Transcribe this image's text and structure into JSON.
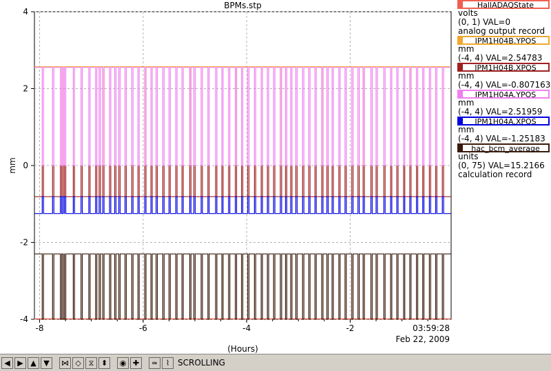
{
  "chart_data": {
    "type": "line",
    "title": "BPMs.stp",
    "xlabel": "(Hours)",
    "ylabel": "mm",
    "xlim": [
      -8.1,
      -0.05
    ],
    "ylim": [
      -4,
      4
    ],
    "xticks": [
      -8,
      -6,
      -4,
      -2
    ],
    "yticks": [
      4,
      2,
      0,
      -2,
      -4
    ],
    "xtick_labels": [
      "-8",
      "-6",
      "-4",
      "-2"
    ],
    "ytick_labels": [
      "4",
      "2",
      "0",
      "-2",
      "-4"
    ],
    "grid": true,
    "legend": "right",
    "time_label": "03:59:28",
    "date_label": "Feb 22, 2009",
    "series": [
      {
        "name": "HallADAQState",
        "color": "#f06050",
        "baseline": -3.99,
        "high": -3.99
      },
      {
        "name": "IPM1H04B.YPOS",
        "color": "#f0a830",
        "baseline": 2.57,
        "low": 0.0
      },
      {
        "name": "IPM1H04B.XPOS",
        "color": "#a02020",
        "baseline": -0.81,
        "low": 0.0
      },
      {
        "name": "IPM1H04A.YPOS",
        "color": "#f080f0",
        "baseline": 2.55,
        "low": 0.0
      },
      {
        "name": "IPM1H04A.XPOS",
        "color": "#0000e0",
        "baseline": -1.25,
        "low": -0.81
      },
      {
        "name": "hac_bcm_average",
        "color": "#3a1a0a",
        "baseline": -2.3,
        "low": -4.0
      }
    ],
    "dropouts_hours": [
      -7.95,
      -7.75,
      -7.6,
      -7.55,
      -7.52,
      -7.35,
      -7.2,
      -7.05,
      -6.92,
      -6.85,
      -6.78,
      -6.65,
      -6.55,
      -6.47,
      -6.35,
      -6.22,
      -6.1,
      -5.97,
      -5.85,
      -5.75,
      -5.62,
      -5.5,
      -5.37,
      -5.25,
      -5.1,
      -5.02,
      -4.88,
      -4.75,
      -4.6,
      -4.48,
      -4.35,
      -4.22,
      -4.1,
      -3.98,
      -3.85,
      -3.72,
      -3.6,
      -3.48,
      -3.35,
      -3.25,
      -3.15,
      -3.05,
      -2.92,
      -2.8,
      -2.68,
      -2.55,
      -2.45,
      -2.35,
      -2.22,
      -2.1,
      -1.97,
      -1.85,
      -1.75,
      -1.6,
      -1.5,
      -1.35,
      -1.22,
      -1.1,
      -0.97,
      -0.85,
      -0.72,
      -0.6,
      -0.47,
      -0.35,
      -0.22
    ]
  },
  "legend": {
    "items": [
      {
        "name": "HallADAQState",
        "color": "#f06050",
        "units": "volts",
        "range_val": "(0, 1)  VAL=0",
        "extra": "analog output record"
      },
      {
        "name": "IPM1H04B.YPOS",
        "color": "#f0a830",
        "units": "mm",
        "range_val": "(-4, 4)  VAL=2.54783",
        "extra": ""
      },
      {
        "name": "IPM1H04B.XPOS",
        "color": "#a02020",
        "units": "mm",
        "range_val": "(-4, 4)  VAL=-0.807163",
        "extra": ""
      },
      {
        "name": "IPM1H04A.YPOS",
        "color": "#f080f0",
        "units": "mm",
        "range_val": "(-4, 4)  VAL=2.51959",
        "extra": ""
      },
      {
        "name": "IPM1H04A.XPOS",
        "color": "#0000e0",
        "units": "mm",
        "range_val": "(-4, 4)  VAL=-1.25183",
        "extra": ""
      },
      {
        "name": "hac_bcm_average",
        "color": "#3a1a0a",
        "units": "units",
        "range_val": "(0, 75)  VAL=15.2166",
        "extra": "calculation record"
      }
    ]
  },
  "toolbar": {
    "buttons": [
      {
        "icon": "arrow-left-icon",
        "glyph": "◀"
      },
      {
        "icon": "arrow-right-icon",
        "glyph": "▶"
      },
      {
        "icon": "arrow-up-icon",
        "glyph": "▲"
      },
      {
        "icon": "arrow-down-icon",
        "glyph": "▼"
      },
      {
        "icon": "zoom-in-horizontal-icon",
        "glyph": "⋈"
      },
      {
        "icon": "zoom-out-horizontal-icon",
        "glyph": "◇"
      },
      {
        "icon": "zoom-in-vertical-icon",
        "glyph": "⧖"
      },
      {
        "icon": "zoom-out-vertical-icon",
        "glyph": "⬍"
      },
      {
        "icon": "record-icon",
        "glyph": "◉"
      },
      {
        "icon": "add-icon",
        "glyph": "✚"
      },
      {
        "icon": "auto-scale-icon",
        "glyph": "≃"
      },
      {
        "icon": "graph-icon",
        "glyph": "⌇"
      }
    ],
    "status_label": "SCROLLING"
  }
}
